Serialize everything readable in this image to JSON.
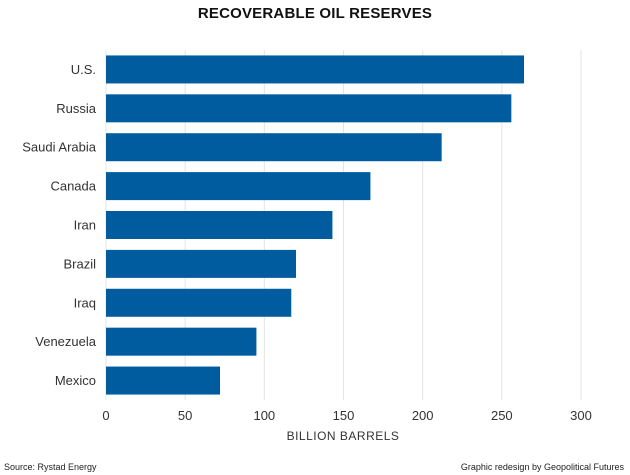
{
  "chart_data": {
    "type": "bar",
    "orientation": "horizontal",
    "title": "RECOVERABLE OIL RESERVES",
    "xlabel": "BILLION BARRELS",
    "ylabel": "",
    "categories": [
      "U.S.",
      "Russia",
      "Saudi Arabia",
      "Canada",
      "Iran",
      "Brazil",
      "Iraq",
      "Venezuela",
      "Mexico"
    ],
    "values": [
      264,
      256,
      212,
      167,
      143,
      120,
      117,
      95,
      72
    ],
    "xlim": [
      0,
      300
    ],
    "xticks": [
      0,
      50,
      100,
      150,
      200,
      250,
      300
    ],
    "grid": true,
    "bar_color": "#005b9f"
  },
  "footer": {
    "source": "Source: Rystad Energy",
    "credit": "Graphic redesign by Geopolitical Futures"
  }
}
